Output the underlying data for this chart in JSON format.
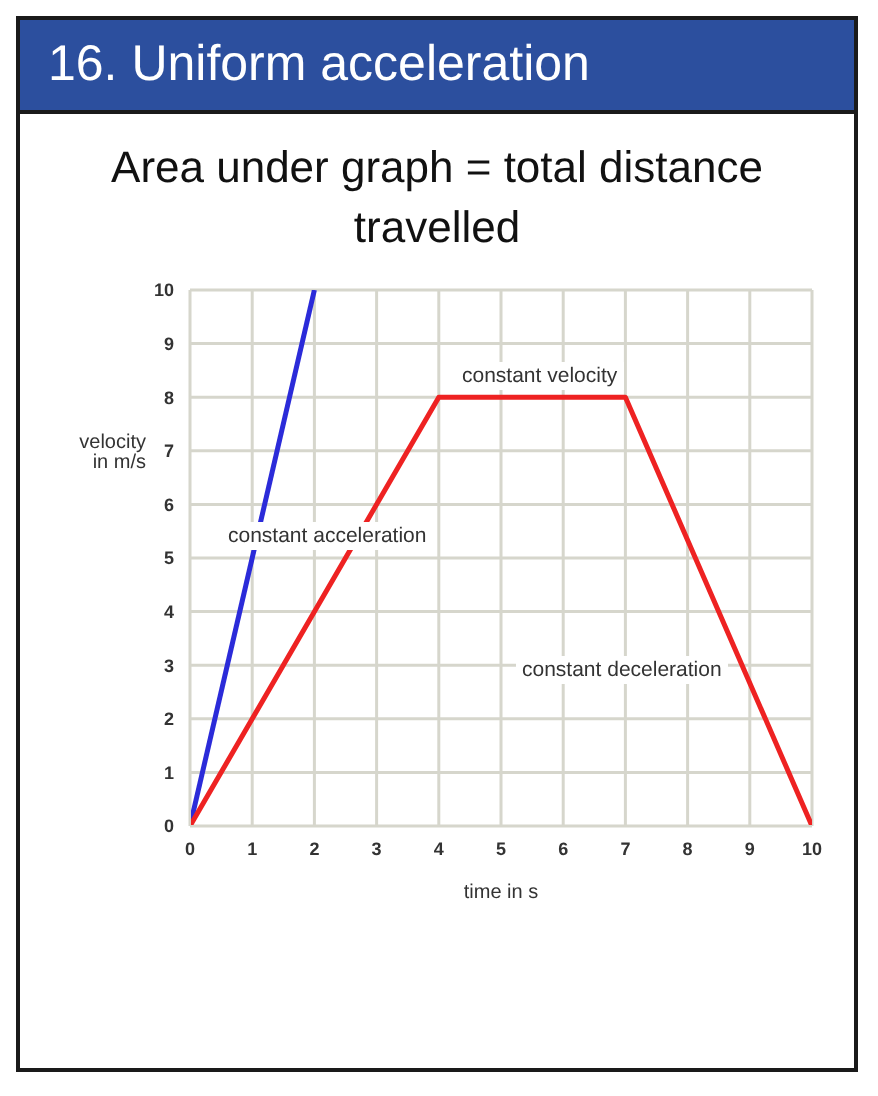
{
  "chart_data": {
    "type": "line",
    "title": "16. Uniform acceleration",
    "subtitle": "Area under graph = total distance travelled",
    "xlabel": "time in s",
    "ylabel": "velocity in m/s",
    "series": [
      {
        "color": "#2b2bd9",
        "x": [
          0,
          2
        ],
        "values": [
          0,
          10
        ]
      },
      {
        "color": "#ee2222",
        "x": [
          0,
          4,
          7,
          10
        ],
        "values": [
          0,
          8,
          8,
          0
        ]
      }
    ],
    "xlim": [
      0,
      10
    ],
    "xticks": [
      0,
      1,
      2,
      3,
      4,
      5,
      6,
      7,
      8,
      9,
      10
    ],
    "ylim": [
      0,
      10
    ],
    "yticks": [
      0,
      1,
      2,
      3,
      4,
      5,
      6,
      7,
      8,
      9,
      10
    ],
    "grid": true,
    "marker": "none",
    "line_style": "solid",
    "annotations": [
      "constant velocity",
      "constant acceleration",
      "constant deceleration"
    ]
  }
}
